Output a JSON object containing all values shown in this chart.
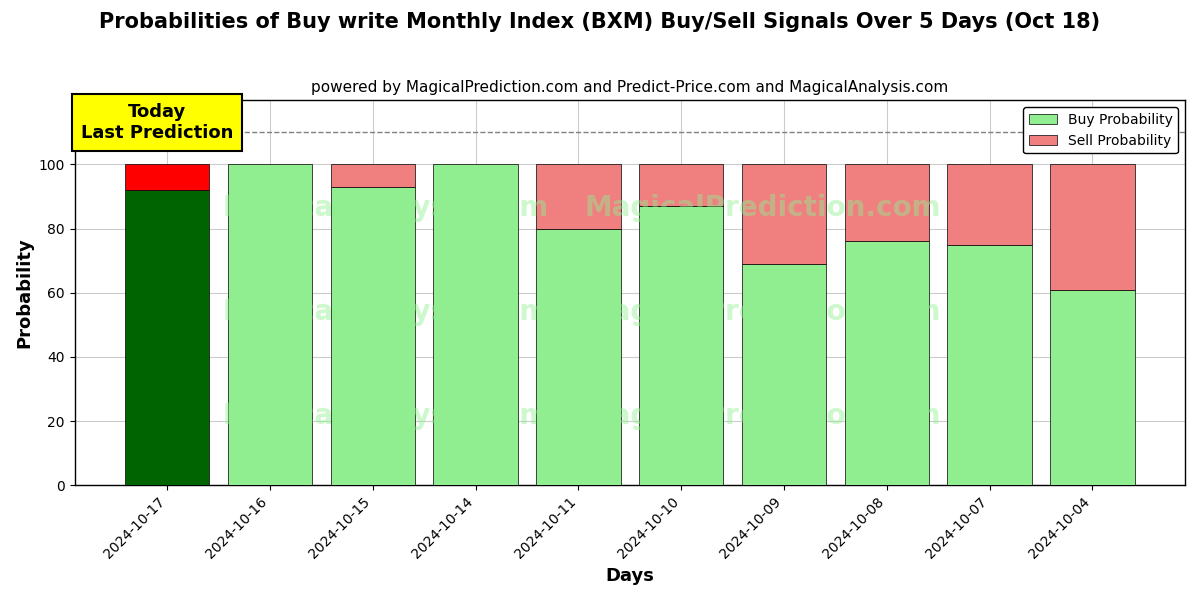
{
  "title": "Probabilities of Buy write Monthly Index (BXM) Buy/Sell Signals Over 5 Days (Oct 18)",
  "subtitle": "powered by MagicalPrediction.com and Predict-Price.com and MagicalAnalysis.com",
  "xlabel": "Days",
  "ylabel": "Probability",
  "dates": [
    "2024-10-17",
    "2024-10-16",
    "2024-10-15",
    "2024-10-14",
    "2024-10-11",
    "2024-10-10",
    "2024-10-09",
    "2024-10-08",
    "2024-10-07",
    "2024-10-04"
  ],
  "buy_probs": [
    92,
    100,
    93,
    100,
    80,
    87,
    69,
    76,
    75,
    61
  ],
  "sell_probs": [
    8,
    0,
    7,
    0,
    20,
    13,
    31,
    24,
    25,
    39
  ],
  "today_bar_buy_color": "#006400",
  "today_bar_sell_color": "#ff0000",
  "regular_bar_buy_color": "#90EE90",
  "regular_bar_sell_color": "#F08080",
  "bar_edge_color": "#000000",
  "legend_buy_color": "#90EE90",
  "legend_sell_color": "#F08080",
  "today_annotation_bg": "#ffff00",
  "today_annotation_text": "Today\nLast Prediction",
  "dashed_line_y": 110,
  "ylim": [
    0,
    120
  ],
  "yticks": [
    0,
    20,
    40,
    60,
    80,
    100
  ],
  "background_color": "#ffffff",
  "grid_color": "#cccccc",
  "watermark_texts": [
    "MagicalAnalysis.com",
    "MagicalPrediction.com"
  ],
  "watermark_rows": [
    0.72,
    0.45,
    0.18
  ],
  "watermark_cols": [
    0.28,
    0.62
  ],
  "title_fontsize": 15,
  "subtitle_fontsize": 11,
  "axis_label_fontsize": 13,
  "tick_fontsize": 10,
  "bar_width": 0.82,
  "legend_label_sell": "Sell Probability"
}
